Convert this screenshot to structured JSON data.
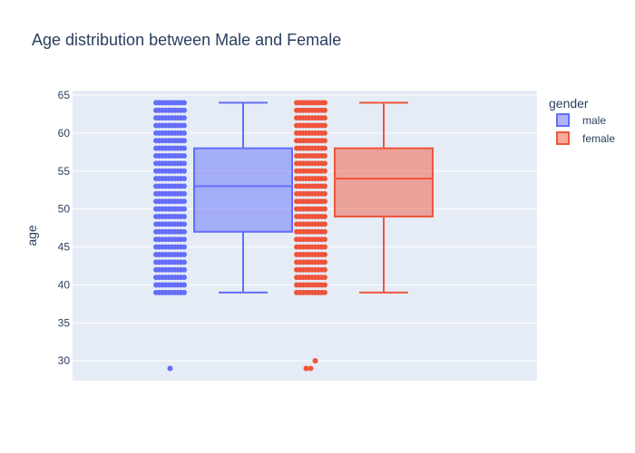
{
  "chart_data": {
    "type": "box",
    "title": "Age distribution between Male and Female",
    "xlabel": "",
    "ylabel": "age",
    "ylim": [
      27.4,
      65.6
    ],
    "yticks": [
      30,
      35,
      40,
      45,
      50,
      55,
      60,
      65
    ],
    "grid": true,
    "legend": {
      "title": "gender",
      "placement": "top-right"
    },
    "points": "all",
    "series": [
      {
        "name": "male",
        "color": "#636efa",
        "min": 39,
        "q1": 47,
        "median": 53,
        "q3": 58,
        "max": 64,
        "points": [
          39,
          40,
          41,
          42,
          43,
          44,
          45,
          46,
          47,
          48,
          49,
          50,
          51,
          52,
          53,
          54,
          55,
          56,
          57,
          58,
          59,
          60,
          61,
          62,
          63,
          64
        ],
        "outliers": [
          29
        ]
      },
      {
        "name": "female",
        "color": "#ef553b",
        "min": 39,
        "q1": 49,
        "median": 54,
        "q3": 58,
        "max": 64,
        "points": [
          39,
          40,
          41,
          42,
          43,
          44,
          45,
          46,
          47,
          48,
          49,
          50,
          51,
          52,
          53,
          54,
          55,
          56,
          57,
          58,
          59,
          60,
          61,
          62,
          63,
          64
        ],
        "outliers": [
          29,
          29,
          30
        ]
      }
    ]
  }
}
